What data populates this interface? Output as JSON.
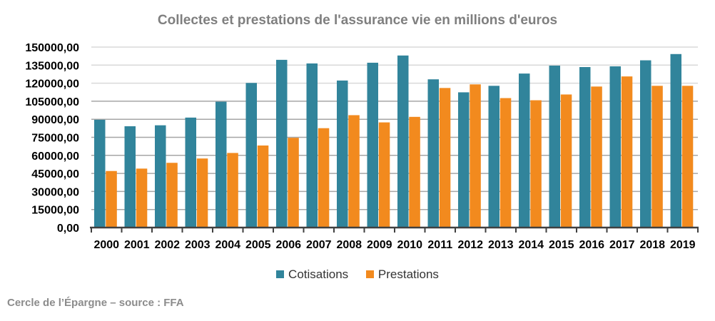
{
  "chart_data": {
    "type": "bar",
    "title": "Collectes  et prestations de l'assurance vie en millions d'euros",
    "categories": [
      "2000",
      "2001",
      "2002",
      "2003",
      "2004",
      "2005",
      "2006",
      "2007",
      "2008",
      "2009",
      "2010",
      "2011",
      "2012",
      "2013",
      "2014",
      "2015",
      "2016",
      "2017",
      "2018",
      "2019"
    ],
    "series": [
      {
        "name": "Cotisations",
        "color": "#31849b",
        "values": [
          89600,
          84200,
          85000,
          91400,
          104600,
          120200,
          139400,
          136400,
          122200,
          137000,
          143000,
          123200,
          112400,
          117800,
          128000,
          134600,
          133400,
          134000,
          139000,
          144200
        ]
      },
      {
        "name": "Prestations",
        "color": "#f28a1e",
        "values": [
          47000,
          49000,
          53800,
          57400,
          62000,
          68200,
          74600,
          82600,
          93400,
          87400,
          92000,
          116000,
          119000,
          107600,
          105800,
          110600,
          117200,
          125600,
          117800,
          117800
        ]
      }
    ],
    "ylim": [
      0,
      150000
    ],
    "yticks": [
      "0,00",
      "15000,00",
      "30000,00",
      "45000,00",
      "60000,00",
      "75000,00",
      "90000,00",
      "105000,00",
      "120000,00",
      "135000,00",
      "150000,00"
    ],
    "grid": true,
    "legend": "bottom"
  },
  "source": "Cercle de l’Épargne – source : FFA"
}
